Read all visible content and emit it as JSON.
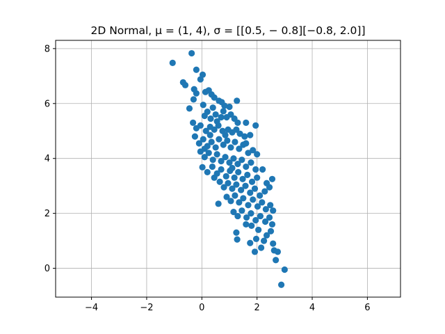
{
  "chart_data": {
    "type": "scatter",
    "title": "2D Normal, μ = (1, 4), σ = [[0.5, − 0.8][−0.8, 2.0]]",
    "xlabel": "",
    "ylabel": "",
    "xlim": [
      -5.3,
      7.2
    ],
    "ylim": [
      -1.05,
      8.3
    ],
    "xticks": [
      -4,
      -2,
      0,
      2,
      4,
      6
    ],
    "yticks": [
      0,
      2,
      4,
      6,
      8
    ],
    "xtick_labels": [
      "−4",
      "−2",
      "0",
      "2",
      "4",
      "6"
    ],
    "ytick_labels": [
      "0",
      "2",
      "4",
      "6",
      "8"
    ],
    "grid": true,
    "color": "#1f77b4",
    "points": [
      [
        -1.06,
        7.48
      ],
      [
        -0.37,
        7.83
      ],
      [
        -0.68,
        6.77
      ],
      [
        -0.6,
        6.67
      ],
      [
        -0.2,
        7.23
      ],
      [
        0.03,
        7.05
      ],
      [
        -0.05,
        6.88
      ],
      [
        -0.28,
        6.52
      ],
      [
        -0.2,
        6.37
      ],
      [
        0.13,
        6.42
      ],
      [
        0.25,
        6.48
      ],
      [
        0.35,
        6.33
      ],
      [
        0.45,
        6.22
      ],
      [
        0.62,
        6.1
      ],
      [
        0.72,
        6.05
      ],
      [
        0.82,
        5.92
      ],
      [
        1.0,
        5.88
      ],
      [
        1.27,
        6.1
      ],
      [
        -0.45,
        5.82
      ],
      [
        -0.3,
        6.15
      ],
      [
        0.05,
        5.95
      ],
      [
        0.1,
        5.55
      ],
      [
        0.2,
        5.7
      ],
      [
        0.32,
        5.45
      ],
      [
        0.4,
        5.85
      ],
      [
        0.5,
        5.6
      ],
      [
        0.55,
        5.35
      ],
      [
        0.7,
        5.5
      ],
      [
        0.78,
        5.72
      ],
      [
        0.9,
        5.5
      ],
      [
        1.05,
        5.6
      ],
      [
        1.18,
        5.45
      ],
      [
        1.3,
        5.3
      ],
      [
        1.6,
        5.3
      ],
      [
        1.95,
        5.2
      ],
      [
        -0.32,
        5.3
      ],
      [
        -0.2,
        5.1
      ],
      [
        -0.05,
        5.2
      ],
      [
        0.15,
        5.0
      ],
      [
        0.3,
        5.15
      ],
      [
        0.45,
        5.05
      ],
      [
        0.6,
        5.2
      ],
      [
        0.75,
        5.0
      ],
      [
        0.95,
        5.05
      ],
      [
        1.1,
        4.95
      ],
      [
        1.25,
        5.05
      ],
      [
        1.38,
        4.9
      ],
      [
        1.55,
        4.8
      ],
      [
        1.75,
        4.85
      ],
      [
        -0.25,
        4.8
      ],
      [
        -0.1,
        4.55
      ],
      [
        0.05,
        4.7
      ],
      [
        0.2,
        4.45
      ],
      [
        0.35,
        4.6
      ],
      [
        0.5,
        4.4
      ],
      [
        0.62,
        4.7
      ],
      [
        0.78,
        4.5
      ],
      [
        0.92,
        4.65
      ],
      [
        1.05,
        4.4
      ],
      [
        1.2,
        4.6
      ],
      [
        1.35,
        4.35
      ],
      [
        1.5,
        4.5
      ],
      [
        1.68,
        4.2
      ],
      [
        1.85,
        4.3
      ],
      [
        2.0,
        4.15
      ],
      [
        -0.05,
        4.25
      ],
      [
        0.1,
        4.05
      ],
      [
        0.25,
        4.2
      ],
      [
        0.4,
        3.95
      ],
      [
        0.55,
        4.15
      ],
      [
        0.7,
        3.9
      ],
      [
        0.85,
        4.05
      ],
      [
        1.0,
        3.85
      ],
      [
        1.15,
        4.0
      ],
      [
        1.3,
        3.8
      ],
      [
        1.45,
        3.95
      ],
      [
        1.6,
        3.7
      ],
      [
        1.78,
        3.85
      ],
      [
        1.95,
        3.6
      ],
      [
        0.02,
        3.68
      ],
      [
        0.2,
        3.5
      ],
      [
        0.38,
        3.7
      ],
      [
        0.55,
        3.45
      ],
      [
        0.7,
        3.6
      ],
      [
        0.88,
        3.35
      ],
      [
        1.02,
        3.55
      ],
      [
        1.18,
        3.3
      ],
      [
        1.32,
        3.5
      ],
      [
        1.48,
        3.25
      ],
      [
        1.65,
        3.4
      ],
      [
        1.82,
        3.15
      ],
      [
        2.0,
        3.3
      ],
      [
        2.2,
        3.6
      ],
      [
        2.35,
        3.1
      ],
      [
        2.55,
        3.25
      ],
      [
        0.65,
        3.15
      ],
      [
        0.8,
        2.95
      ],
      [
        0.95,
        3.1
      ],
      [
        1.1,
        2.9
      ],
      [
        1.25,
        3.05
      ],
      [
        1.42,
        2.85
      ],
      [
        1.58,
        3.0
      ],
      [
        1.75,
        2.75
      ],
      [
        1.92,
        2.9
      ],
      [
        2.1,
        2.65
      ],
      [
        2.28,
        2.8
      ],
      [
        2.45,
        2.95
      ],
      [
        0.6,
        2.35
      ],
      [
        0.9,
        2.6
      ],
      [
        1.05,
        2.45
      ],
      [
        1.2,
        2.65
      ],
      [
        1.35,
        2.4
      ],
      [
        1.5,
        2.55
      ],
      [
        1.68,
        2.3
      ],
      [
        1.85,
        2.5
      ],
      [
        2.02,
        2.25
      ],
      [
        2.18,
        2.4
      ],
      [
        2.32,
        2.15
      ],
      [
        2.48,
        2.3
      ],
      [
        2.58,
        2.1
      ],
      [
        1.15,
        2.05
      ],
      [
        1.3,
        1.9
      ],
      [
        1.45,
        2.1
      ],
      [
        1.62,
        1.85
      ],
      [
        1.78,
        2.0
      ],
      [
        1.95,
        1.75
      ],
      [
        2.12,
        1.9
      ],
      [
        2.3,
        1.7
      ],
      [
        2.45,
        1.85
      ],
      [
        2.55,
        1.6
      ],
      [
        1.25,
        1.3
      ],
      [
        1.28,
        1.05
      ],
      [
        1.75,
        0.92
      ],
      [
        1.92,
        0.6
      ],
      [
        1.97,
        1.07
      ],
      [
        2.15,
        0.75
      ],
      [
        2.25,
        1.0
      ],
      [
        2.35,
        1.2
      ],
      [
        2.5,
        1.35
      ],
      [
        2.58,
        0.9
      ],
      [
        2.62,
        0.65
      ],
      [
        2.75,
        0.6
      ],
      [
        2.68,
        0.3
      ],
      [
        3.0,
        -0.05
      ],
      [
        2.88,
        -0.6
      ],
      [
        1.6,
        1.6
      ],
      [
        1.8,
        1.55
      ],
      [
        2.05,
        1.4
      ],
      [
        0.3,
        4.85
      ],
      [
        0.1,
        4.35
      ],
      [
        0.85,
        4.85
      ],
      [
        1.6,
        4.55
      ],
      [
        1.1,
        3.65
      ],
      [
        0.45,
        3.3
      ]
    ]
  }
}
